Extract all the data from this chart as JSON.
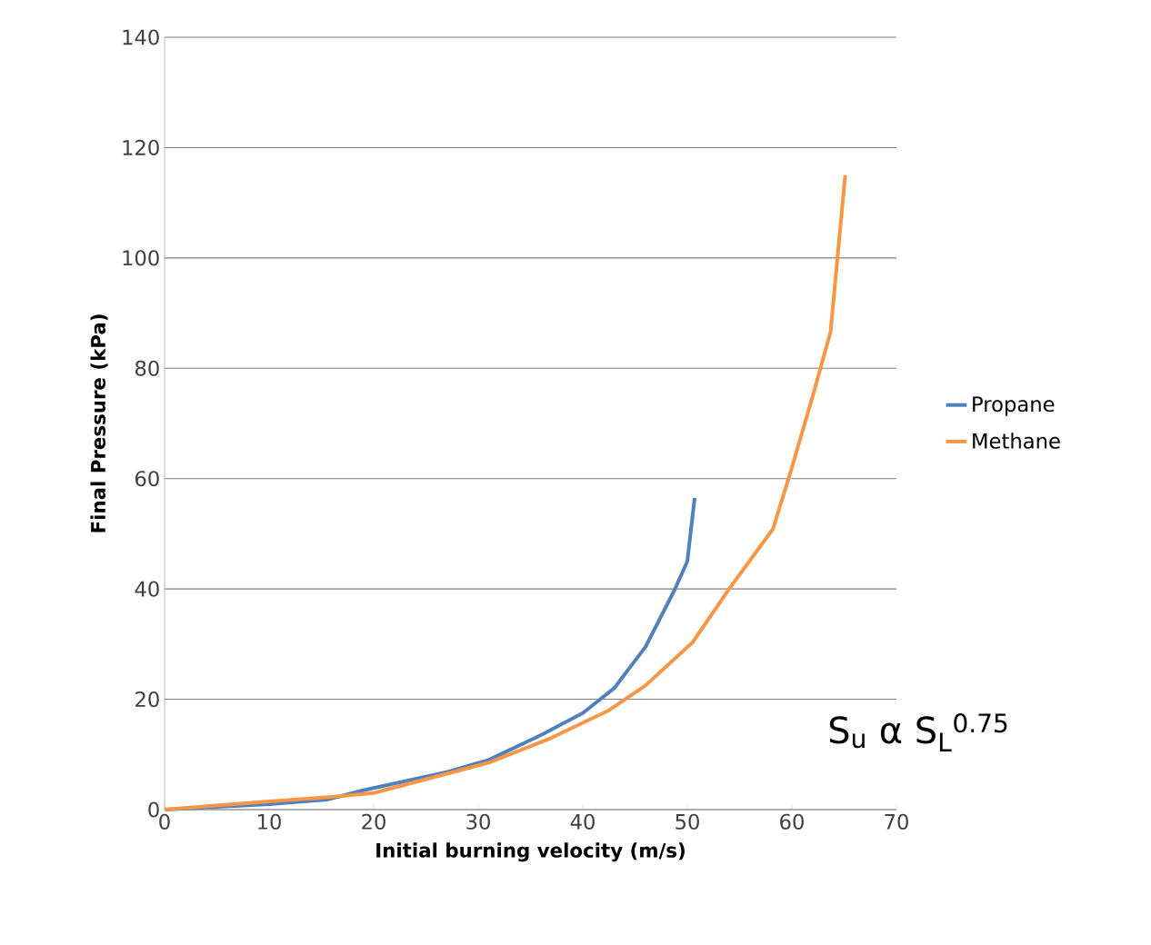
{
  "chart_data": {
    "type": "line",
    "xlabel": "Initial burning velocity (m/s)",
    "ylabel": "Final Pressure (kPa)",
    "xlim": [
      0,
      70
    ],
    "xticks": [
      0,
      10,
      20,
      30,
      40,
      50,
      60,
      70
    ],
    "ylim": [
      0,
      140
    ],
    "yticks": [
      0,
      20,
      40,
      60,
      80,
      100,
      120,
      140
    ],
    "grid": "y",
    "legend": "right",
    "marker": "none",
    "line_style": "solid",
    "annotations": [
      "S$_{u}$ α S$_{L}$$^{0.75}$"
    ],
    "series": [
      {
        "name": "Propane",
        "color": "#4f81bd",
        "x": [
          0,
          10,
          15.5,
          19,
          27,
          31,
          36,
          40,
          43,
          46,
          48.8,
          50,
          50.7
        ],
        "values": [
          0,
          1,
          1.8,
          3.5,
          6.8,
          9,
          13.5,
          17.5,
          22,
          29.5,
          39.9,
          45,
          56.5
        ]
      },
      {
        "name": "Methane",
        "color": "#f79646",
        "x": [
          0,
          10,
          16,
          20,
          28,
          31,
          37,
          42.5,
          46,
          50.5,
          54,
          58.2,
          60,
          62,
          63.7,
          65.1
        ],
        "values": [
          0,
          1.5,
          2.3,
          3,
          7,
          8.5,
          13,
          18,
          22.5,
          30.3,
          40,
          50.9,
          62,
          75,
          86.6,
          115
        ]
      }
    ]
  }
}
